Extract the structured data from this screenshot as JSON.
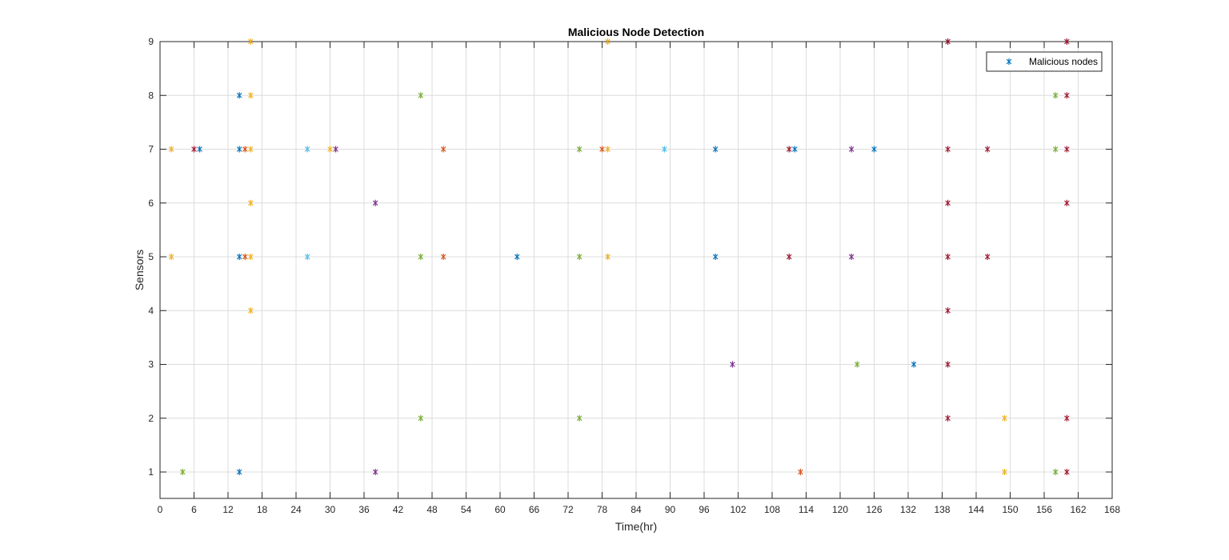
{
  "chart_data": {
    "type": "scatter",
    "title": "Malicious Node Detection",
    "xlabel": "Time(hr)",
    "ylabel": "Sensors",
    "xlim": [
      0,
      168
    ],
    "ylim": [
      0.5,
      9
    ],
    "xticks": [
      0,
      6,
      12,
      18,
      24,
      30,
      36,
      42,
      48,
      54,
      60,
      66,
      72,
      78,
      84,
      90,
      96,
      102,
      108,
      114,
      120,
      126,
      132,
      138,
      144,
      150,
      156,
      162,
      168
    ],
    "yticks": [
      1,
      2,
      3,
      4,
      5,
      6,
      7,
      8,
      9
    ],
    "grid": true,
    "legend": {
      "position": "top-right",
      "entries": [
        {
          "label": "Malicious nodes",
          "color": "#0072BD"
        }
      ]
    },
    "marker": "asterisk",
    "series": [
      {
        "color": "#0072BD",
        "points": [
          [
            7,
            7
          ],
          [
            14,
            8
          ],
          [
            14,
            7
          ],
          [
            14,
            5
          ],
          [
            14,
            1
          ],
          [
            63,
            5
          ],
          [
            98,
            7
          ],
          [
            98,
            5
          ],
          [
            112,
            7
          ],
          [
            126,
            7
          ],
          [
            133,
            3
          ]
        ]
      },
      {
        "color": "#D95319",
        "points": [
          [
            15,
            7
          ],
          [
            15,
            5
          ],
          [
            50,
            7
          ],
          [
            50,
            5
          ],
          [
            78,
            7
          ],
          [
            113,
            1
          ]
        ]
      },
      {
        "color": "#EDB120",
        "points": [
          [
            2,
            7
          ],
          [
            2,
            5
          ],
          [
            16,
            9
          ],
          [
            16,
            8
          ],
          [
            16,
            7
          ],
          [
            16,
            6
          ],
          [
            16,
            5
          ],
          [
            16,
            4
          ],
          [
            30,
            7
          ],
          [
            79,
            9
          ],
          [
            79,
            7
          ],
          [
            79,
            5
          ],
          [
            149,
            2
          ],
          [
            149,
            1
          ]
        ]
      },
      {
        "color": "#7E2F8E",
        "points": [
          [
            31,
            7
          ],
          [
            38,
            6
          ],
          [
            38,
            1
          ],
          [
            101,
            3
          ],
          [
            122,
            7
          ],
          [
            122,
            5
          ]
        ]
      },
      {
        "color": "#77AC30",
        "points": [
          [
            4,
            1
          ],
          [
            46,
            8
          ],
          [
            46,
            5
          ],
          [
            46,
            2
          ],
          [
            74,
            7
          ],
          [
            74,
            5
          ],
          [
            74,
            2
          ],
          [
            123,
            3
          ],
          [
            158,
            8
          ],
          [
            158,
            7
          ],
          [
            158,
            1
          ]
        ]
      },
      {
        "color": "#4DBEEE",
        "points": [
          [
            26,
            7
          ],
          [
            26,
            5
          ],
          [
            89,
            7
          ]
        ]
      },
      {
        "color": "#A2142F",
        "points": [
          [
            6,
            7
          ],
          [
            111,
            7
          ],
          [
            111,
            5
          ],
          [
            139,
            9
          ],
          [
            139,
            7
          ],
          [
            139,
            6
          ],
          [
            139,
            5
          ],
          [
            139,
            4
          ],
          [
            139,
            3
          ],
          [
            139,
            2
          ],
          [
            146,
            7
          ],
          [
            146,
            5
          ],
          [
            160,
            9
          ],
          [
            160,
            8
          ],
          [
            160,
            7
          ],
          [
            160,
            6
          ],
          [
            160,
            2
          ],
          [
            160,
            1
          ]
        ]
      }
    ]
  }
}
